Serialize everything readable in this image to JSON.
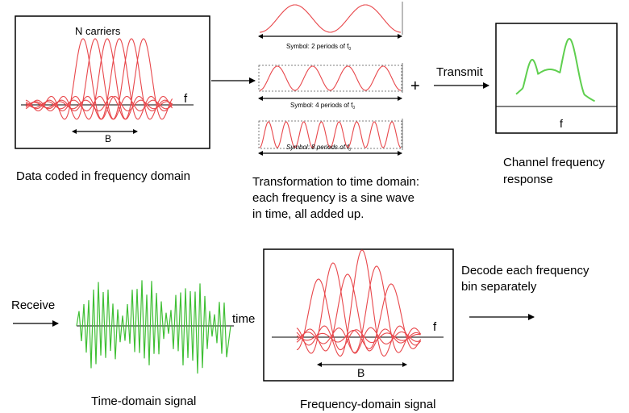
{
  "freq_box": {
    "carriers_label": "N carriers",
    "f_label": "f",
    "b_label": "B"
  },
  "caption_freq_domain": "Data coded in frequency domain",
  "symbols": [
    {
      "text": "Symbol: 2 periods of f",
      "sub": "0"
    },
    {
      "text": "Symbol: 4 periods of f",
      "sub": "0"
    },
    {
      "text": "Symbol: 8 periods of f",
      "sub": "0"
    }
  ],
  "plus_label": "+",
  "transmit_label": "Transmit",
  "caption_transformation": [
    "Transformation to time domain:",
    "each frequency is a sine wave",
    "in time, all added up."
  ],
  "channel_box": {
    "f_label": "f"
  },
  "caption_channel": [
    "Channel frequency",
    "response"
  ],
  "receive_label": "Receive",
  "time_label": "time",
  "caption_time_signal": "Time-domain signal",
  "freq2_box": {
    "f_label": "f",
    "b_label": "B"
  },
  "caption_freq_signal": "Frequency-domain signal",
  "caption_decode": [
    "Decode each frequency",
    "bin separately"
  ],
  "colors": {
    "carrier": "#e8474b",
    "channel": "#5fcf4f",
    "time_signal": "#3fbf34"
  }
}
